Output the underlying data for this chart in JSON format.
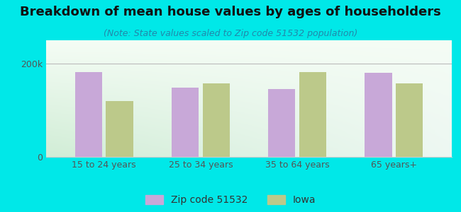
{
  "title": "Breakdown of mean house values by ages of householders",
  "subtitle": "(Note: State values scaled to Zip code 51532 population)",
  "categories": [
    "15 to 24 years",
    "25 to 34 years",
    "35 to 64 years",
    "65 years+"
  ],
  "zip_values": [
    182000,
    148000,
    145000,
    180000
  ],
  "iowa_values": [
    120000,
    158000,
    182000,
    158000
  ],
  "zip_color": "#c8a8d8",
  "iowa_color": "#bcc98a",
  "background_outer": "#00e8e8",
  "ylim": [
    0,
    250000
  ],
  "ytick_labels": [
    "0",
    "200k"
  ],
  "ytick_values": [
    0,
    200000
  ],
  "legend_labels": [
    "Zip code 51532",
    "Iowa"
  ],
  "title_fontsize": 13,
  "subtitle_fontsize": 9,
  "tick_fontsize": 9,
  "legend_fontsize": 10,
  "title_color": "#111111",
  "subtitle_color": "#2288aa",
  "tick_color": "#555555"
}
